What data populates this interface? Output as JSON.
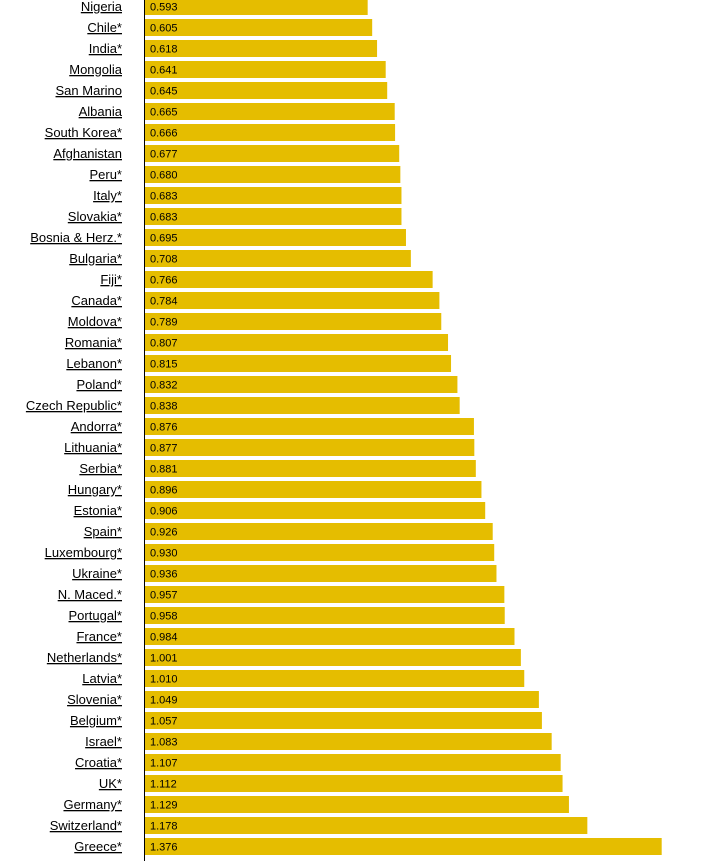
{
  "chart_data": {
    "type": "bar",
    "orientation": "horizontal",
    "title": "",
    "xlabel": "",
    "ylabel": "",
    "grid": false,
    "bar_color": "#E5BD00",
    "axis_color": "#000000",
    "categories": [
      "Nigeria",
      "Chile*",
      "India*",
      "Mongolia",
      "San Marino",
      "Albania",
      "South Korea*",
      "Afghanistan",
      "Peru*",
      "Italy*",
      "Slovakia*",
      "Bosnia & Herz.*",
      "Bulgaria*",
      "Fiji*",
      "Canada*",
      "Moldova*",
      "Romania*",
      "Lebanon*",
      "Poland*",
      "Czech Republic*",
      "Andorra*",
      "Lithuania*",
      "Serbia*",
      "Hungary*",
      "Estonia*",
      "Spain*",
      "Luxembourg*",
      "Ukraine*",
      "N. Maced.*",
      "Portugal*",
      "France*",
      "Netherlands*",
      "Latvia*",
      "Slovenia*",
      "Belgium*",
      "Israel*",
      "Croatia*",
      "UK*",
      "Germany*",
      "Switzerland*",
      "Greece*"
    ],
    "values": [
      0.593,
      0.605,
      0.618,
      0.641,
      0.645,
      0.665,
      0.666,
      0.677,
      0.68,
      0.683,
      0.683,
      0.695,
      0.708,
      0.766,
      0.784,
      0.789,
      0.807,
      0.815,
      0.832,
      0.838,
      0.876,
      0.877,
      0.881,
      0.896,
      0.906,
      0.926,
      0.93,
      0.936,
      0.957,
      0.958,
      0.984,
      1.001,
      1.01,
      1.049,
      1.057,
      1.083,
      1.107,
      1.112,
      1.129,
      1.178,
      1.376
    ],
    "value_labels": [
      "0.593",
      "0.605",
      "0.618",
      "0.641",
      "0.645",
      "0.665",
      "0.666",
      "0.677",
      "0.680",
      "0.683",
      "0.683",
      "0.695",
      "0.708",
      "0.766",
      "0.784",
      "0.789",
      "0.807",
      "0.815",
      "0.832",
      "0.838",
      "0.876",
      "0.877",
      "0.881",
      "0.896",
      "0.906",
      "0.926",
      "0.930",
      "0.936",
      "0.957",
      "0.958",
      "0.984",
      "1.001",
      "1.010",
      "1.049",
      "1.057",
      "1.083",
      "1.107",
      "1.112",
      "1.129",
      "1.178",
      "1.376"
    ]
  }
}
